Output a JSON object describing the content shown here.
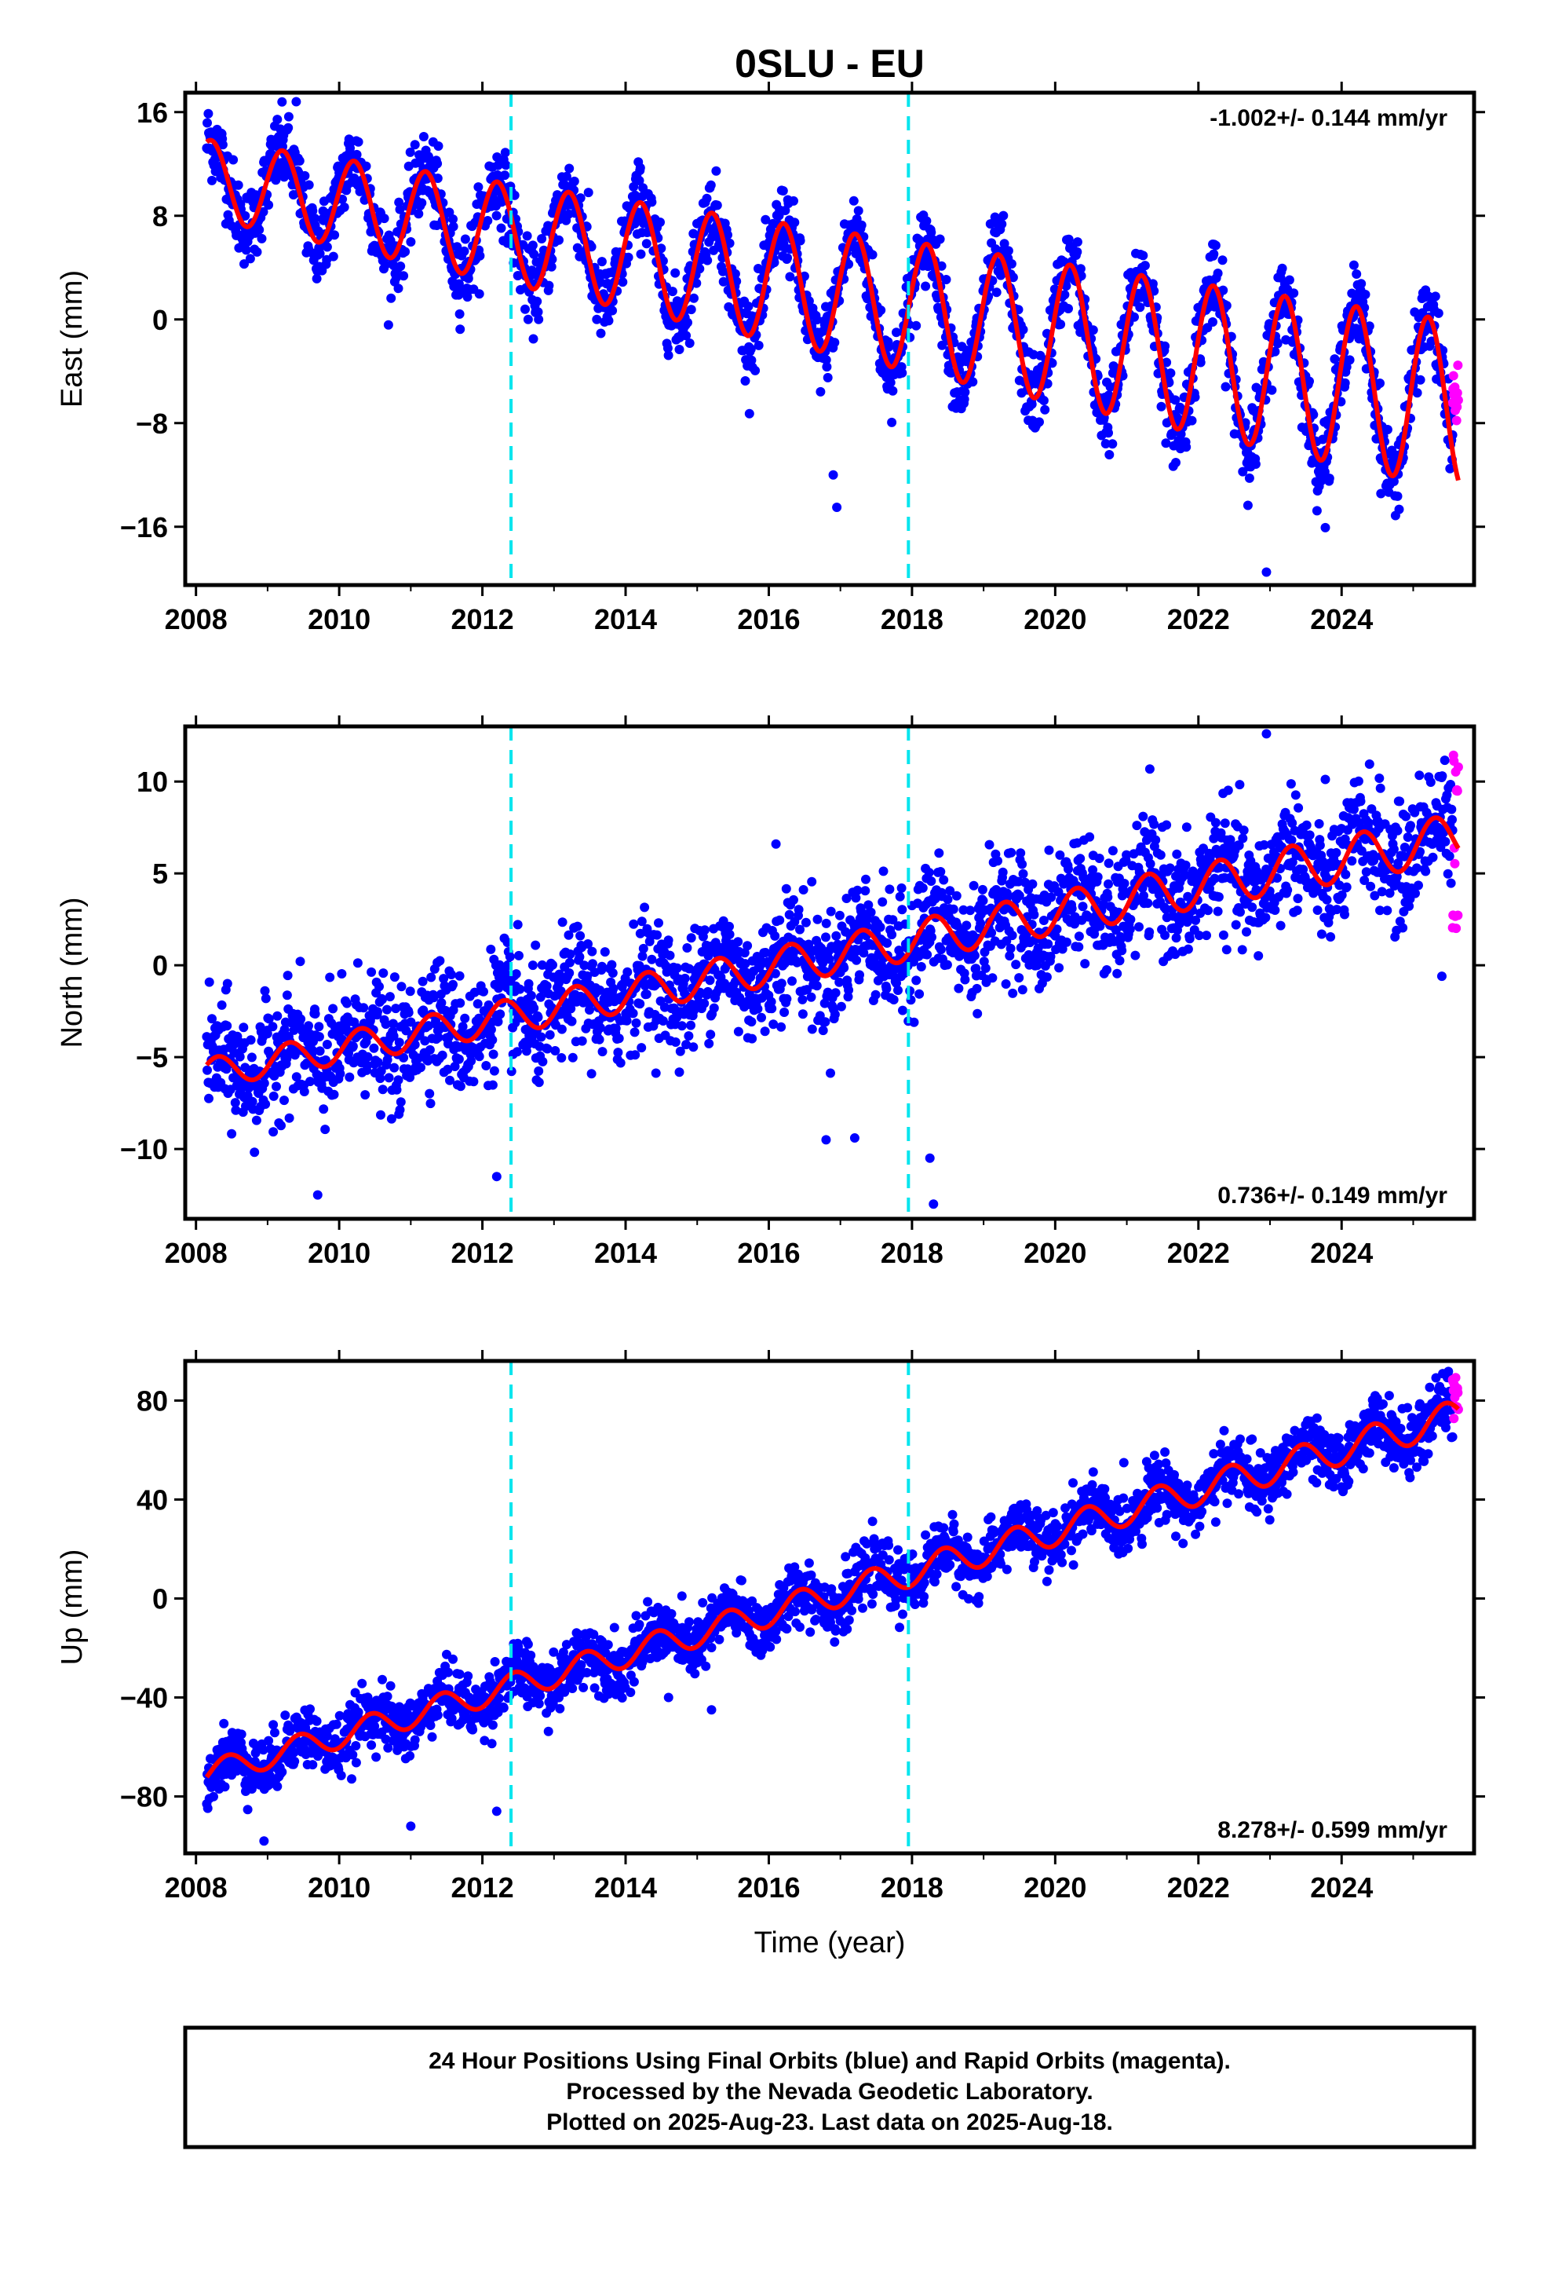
{
  "title": "0SLU - EU",
  "xlabel": "Time (year)",
  "footer": [
    "24 Hour Positions Using Final Orbits (blue) and Rapid Orbits (magenta).",
    "Processed by the Nevada Geodetic Laboratory.",
    "Plotted on 2025-Aug-23. Last data on 2025-Aug-18."
  ],
  "colors": {
    "final_orbits": "#0000ff",
    "rapid_orbits": "#ff00ff",
    "model_fit": "#ff0000",
    "offset_lines": "#00e5ee"
  },
  "chart_data": [
    {
      "type": "scatter",
      "component": "east",
      "ylabel": "East (mm)",
      "rate_label": "-1.002+/- 0.144 mm/yr",
      "xlim": [
        2007.85,
        2025.85
      ],
      "ylim": [
        -20.5,
        17.5
      ],
      "xticks": [
        2008,
        2010,
        2012,
        2014,
        2016,
        2018,
        2020,
        2022,
        2024
      ],
      "yticks": [
        16,
        8,
        0,
        -8,
        -16
      ],
      "offset_epochs": [
        2012.4,
        2017.95
      ],
      "grid": false,
      "series": [
        {
          "name": "Final Orbits",
          "color": "#0000ff",
          "x_range": [
            2008.15,
            2025.55
          ],
          "model": {
            "intercept_at_2008": 11.0,
            "rate_mm_per_yr": -1.002,
            "annual_amplitude": [
              3.0,
              6.5
            ],
            "noise_sigma": 1.5
          },
          "outliers": [
            {
              "x": 2016.9,
              "y": -12.0
            },
            {
              "x": 2016.95,
              "y": -14.5
            },
            {
              "x": 2022.95,
              "y": -19.5
            },
            {
              "x": 2014.2,
              "y": 11.5
            },
            {
              "x": 2022.2,
              "y": 5.8
            },
            {
              "x": 2009.4,
              "y": 16.8
            }
          ]
        },
        {
          "name": "Rapid Orbits",
          "color": "#ff00ff",
          "x_range": [
            2025.55,
            2025.63
          ],
          "values_y_range": [
            -8.0,
            -3.0
          ]
        },
        {
          "name": "Model Fit",
          "color": "#ff0000",
          "type": "line",
          "x_range": [
            2008.15,
            2025.63
          ]
        }
      ]
    },
    {
      "type": "scatter",
      "component": "north",
      "ylabel": "North (mm)",
      "rate_label": "0.736+/- 0.149 mm/yr",
      "xlim": [
        2007.85,
        2025.85
      ],
      "ylim": [
        -13.8,
        13.0
      ],
      "xticks": [
        2008,
        2010,
        2012,
        2014,
        2016,
        2018,
        2020,
        2022,
        2024
      ],
      "yticks": [
        10,
        5,
        0,
        -5,
        -10
      ],
      "offset_epochs": [
        2012.4,
        2017.95
      ],
      "grid": false,
      "series": [
        {
          "name": "Final Orbits",
          "color": "#0000ff",
          "x_range": [
            2008.15,
            2025.55
          ],
          "model": {
            "intercept_at_2008": -6.0,
            "rate_mm_per_yr": 0.736,
            "annual_amplitude": [
              0.8,
              1.3
            ],
            "noise_sigma": 1.6
          },
          "outliers": [
            {
              "x": 2009.7,
              "y": -12.5
            },
            {
              "x": 2012.2,
              "y": -11.5
            },
            {
              "x": 2016.8,
              "y": -9.5
            },
            {
              "x": 2017.2,
              "y": -9.4
            },
            {
              "x": 2018.25,
              "y": -10.5
            },
            {
              "x": 2018.3,
              "y": -13.0
            },
            {
              "x": 2016.1,
              "y": 6.6
            },
            {
              "x": 2022.95,
              "y": 12.6
            },
            {
              "x": 2025.4,
              "y": -0.6
            }
          ]
        },
        {
          "name": "Rapid Orbits",
          "color": "#ff00ff",
          "x_range": [
            2025.55,
            2025.63
          ],
          "values_y_range": [
            1.6,
            12.3
          ]
        },
        {
          "name": "Model Fit",
          "color": "#ff0000",
          "type": "line",
          "x_range": [
            2008.15,
            2025.63
          ]
        }
      ]
    },
    {
      "type": "scatter",
      "component": "up",
      "ylabel": "Up (mm)",
      "rate_label": "8.278+/- 0.599 mm/yr",
      "xlim": [
        2007.85,
        2025.85
      ],
      "ylim": [
        -103,
        96
      ],
      "xticks": [
        2008,
        2010,
        2012,
        2014,
        2016,
        2018,
        2020,
        2022,
        2024
      ],
      "yticks": [
        80,
        40,
        0,
        -40,
        -80
      ],
      "offset_epochs": [
        2012.4,
        2017.95
      ],
      "grid": false,
      "series": [
        {
          "name": "Final Orbits",
          "color": "#0000ff",
          "x_range": [
            2008.15,
            2025.55
          ],
          "model": {
            "intercept_at_2008": -72.0,
            "rate_mm_per_yr": 8.278,
            "annual_amplitude": [
              5.0,
              6.5
            ],
            "noise_sigma": 6.0
          },
          "outliers": [
            {
              "x": 2008.95,
              "y": -98.0
            },
            {
              "x": 2011.0,
              "y": -92.0
            },
            {
              "x": 2012.2,
              "y": -86.0
            },
            {
              "x": 2014.6,
              "y": -40.0
            },
            {
              "x": 2015.2,
              "y": -45.0
            },
            {
              "x": 2021.6,
              "y": 44.0
            }
          ]
        },
        {
          "name": "Rapid Orbits",
          "color": "#ff00ff",
          "x_range": [
            2025.55,
            2025.63
          ],
          "values_y_range": [
            72.0,
            91.0
          ]
        },
        {
          "name": "Model Fit",
          "color": "#ff0000",
          "type": "line",
          "x_range": [
            2008.15,
            2025.63
          ]
        }
      ]
    }
  ]
}
